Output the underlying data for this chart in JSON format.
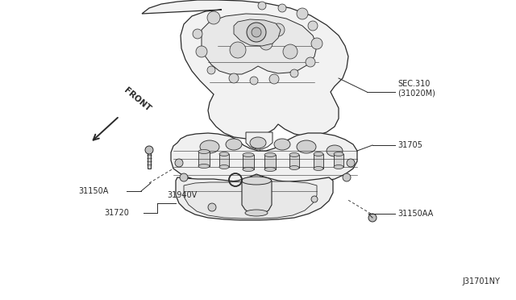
{
  "bg_color": "#ffffff",
  "fig_id": "J31701NY",
  "line_color": "#2a2a2a",
  "labels": {
    "sec310": "SEC.310\n(31020M)",
    "part31705": "31705",
    "part31150A": "31150A",
    "part31940V": "31940V",
    "part31720": "31720",
    "part31150AA": "31150AA",
    "front": "FRONT"
  }
}
